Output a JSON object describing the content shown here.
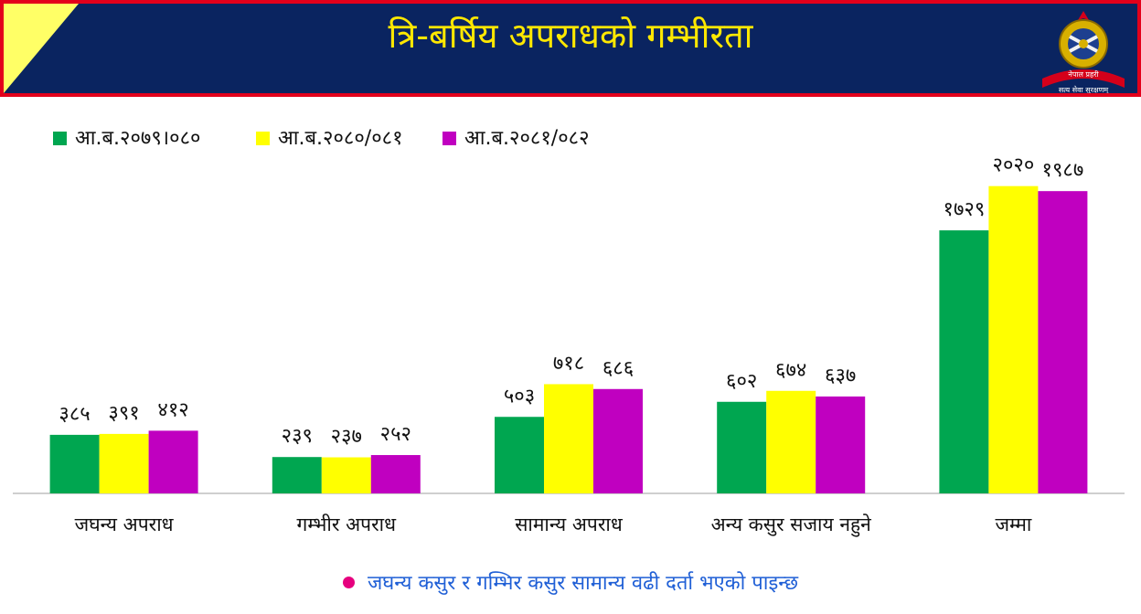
{
  "title": "त्रि-बर्षिय अपराधको गम्भीरता",
  "logo": {
    "label_top": "नेपाल प्रहरी",
    "label_bottom": "सत्य सेवा सुरक्षणम्"
  },
  "chart_data": {
    "type": "bar",
    "categories": [
      "जघन्य अपराध",
      "गम्भीर अपराध",
      "सामान्य अपराध",
      "अन्य कसुर सजाय नहुने",
      "जम्मा"
    ],
    "series": [
      {
        "name": "आ.ब.२०७९।०८०",
        "values": [
          385,
          239,
          503,
          602,
          1729
        ],
        "labels": [
          "३८५",
          "२३९",
          "५०३",
          "६०२",
          "१७२९"
        ],
        "color": "#00a650"
      },
      {
        "name": "आ.ब.२०८०/०८१",
        "values": [
          391,
          237,
          718,
          674,
          2020
        ],
        "labels": [
          "३९१",
          "२३७",
          "७१८",
          "६७४",
          "२०२०"
        ],
        "color": "#ffff00"
      },
      {
        "name": "आ.ब.२०८१/०८२",
        "values": [
          412,
          252,
          686,
          637,
          1987
        ],
        "labels": [
          "४१२",
          "२५२",
          "६८६",
          "६३७",
          "१९८७"
        ],
        "color": "#c000c0"
      }
    ],
    "ylim": [
      0,
      2300
    ],
    "legend_position": "top-left",
    "grid": false
  },
  "footnote": "जघन्य कसुर र गम्भिर कसुर सामान्य वढी दर्ता भएको पाइन्छ",
  "colors": {
    "header_bg": "#0a2460",
    "header_border": "#e3001b",
    "title": "#ffe800",
    "corner_accent": "#ffff66",
    "footnote_text": "#1f5fd6",
    "footnote_bullet": "#e6007e"
  }
}
